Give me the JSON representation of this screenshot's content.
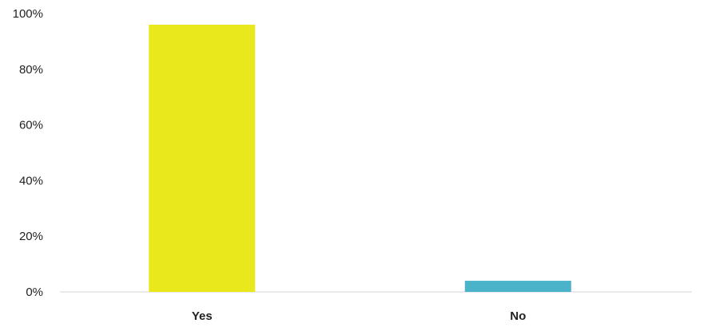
{
  "chart_data": {
    "type": "bar",
    "title": "",
    "xlabel": "",
    "ylabel": "",
    "categories": [
      "Yes",
      "No"
    ],
    "values": [
      96,
      4
    ],
    "ylim": [
      0,
      100
    ],
    "yticks": [
      "0%",
      "20%",
      "40%",
      "60%",
      "80%",
      "100%"
    ],
    "ytick_values": [
      0,
      20,
      40,
      60,
      80,
      100
    ],
    "colors": [
      "#e8e81c",
      "#4ab3c9"
    ],
    "grid": false,
    "legend": "none"
  }
}
